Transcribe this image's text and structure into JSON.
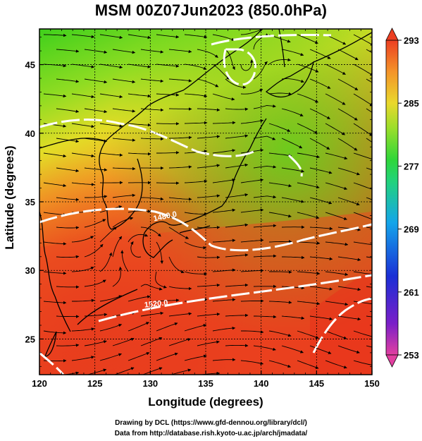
{
  "title": "MSM 00Z07Jun2023 (850.0hPa)",
  "axes": {
    "xlabel": "Longitude (degrees)",
    "ylabel": "Latitude  (degrees)",
    "x_range": [
      120,
      150
    ],
    "y_range": [
      22.4,
      47.6
    ],
    "x_ticks": [
      "120",
      "125",
      "130",
      "135",
      "140",
      "145",
      "150"
    ],
    "y_ticks": [
      "25",
      "30",
      "35",
      "40",
      "45"
    ]
  },
  "colorbar": {
    "min": 253,
    "max": 293,
    "labels": [
      "293",
      "285",
      "277",
      "269",
      "261",
      "253"
    ],
    "colors": [
      "#e43d7e",
      "#3a1fb0",
      "#1553d8",
      "#12b5e8",
      "#2fd38a",
      "#38d63a",
      "#a9de2b",
      "#e8d22c",
      "#f39a2a",
      "#ee4a25"
    ]
  },
  "map": {
    "field": "temperature_K",
    "warm_color": "#e9331d",
    "cool_color": "#3fd01c",
    "contour_color": "#ffffff",
    "contour_labels": [
      "1480.0",
      "1520.0"
    ]
  },
  "credits": {
    "line1": "Drawing by DCL (https://www.gfd-dennou.org/library/dcl/)",
    "line2": "Data from http://database.rish.kyoto-u.ac.jp/arch/jmadata/"
  }
}
